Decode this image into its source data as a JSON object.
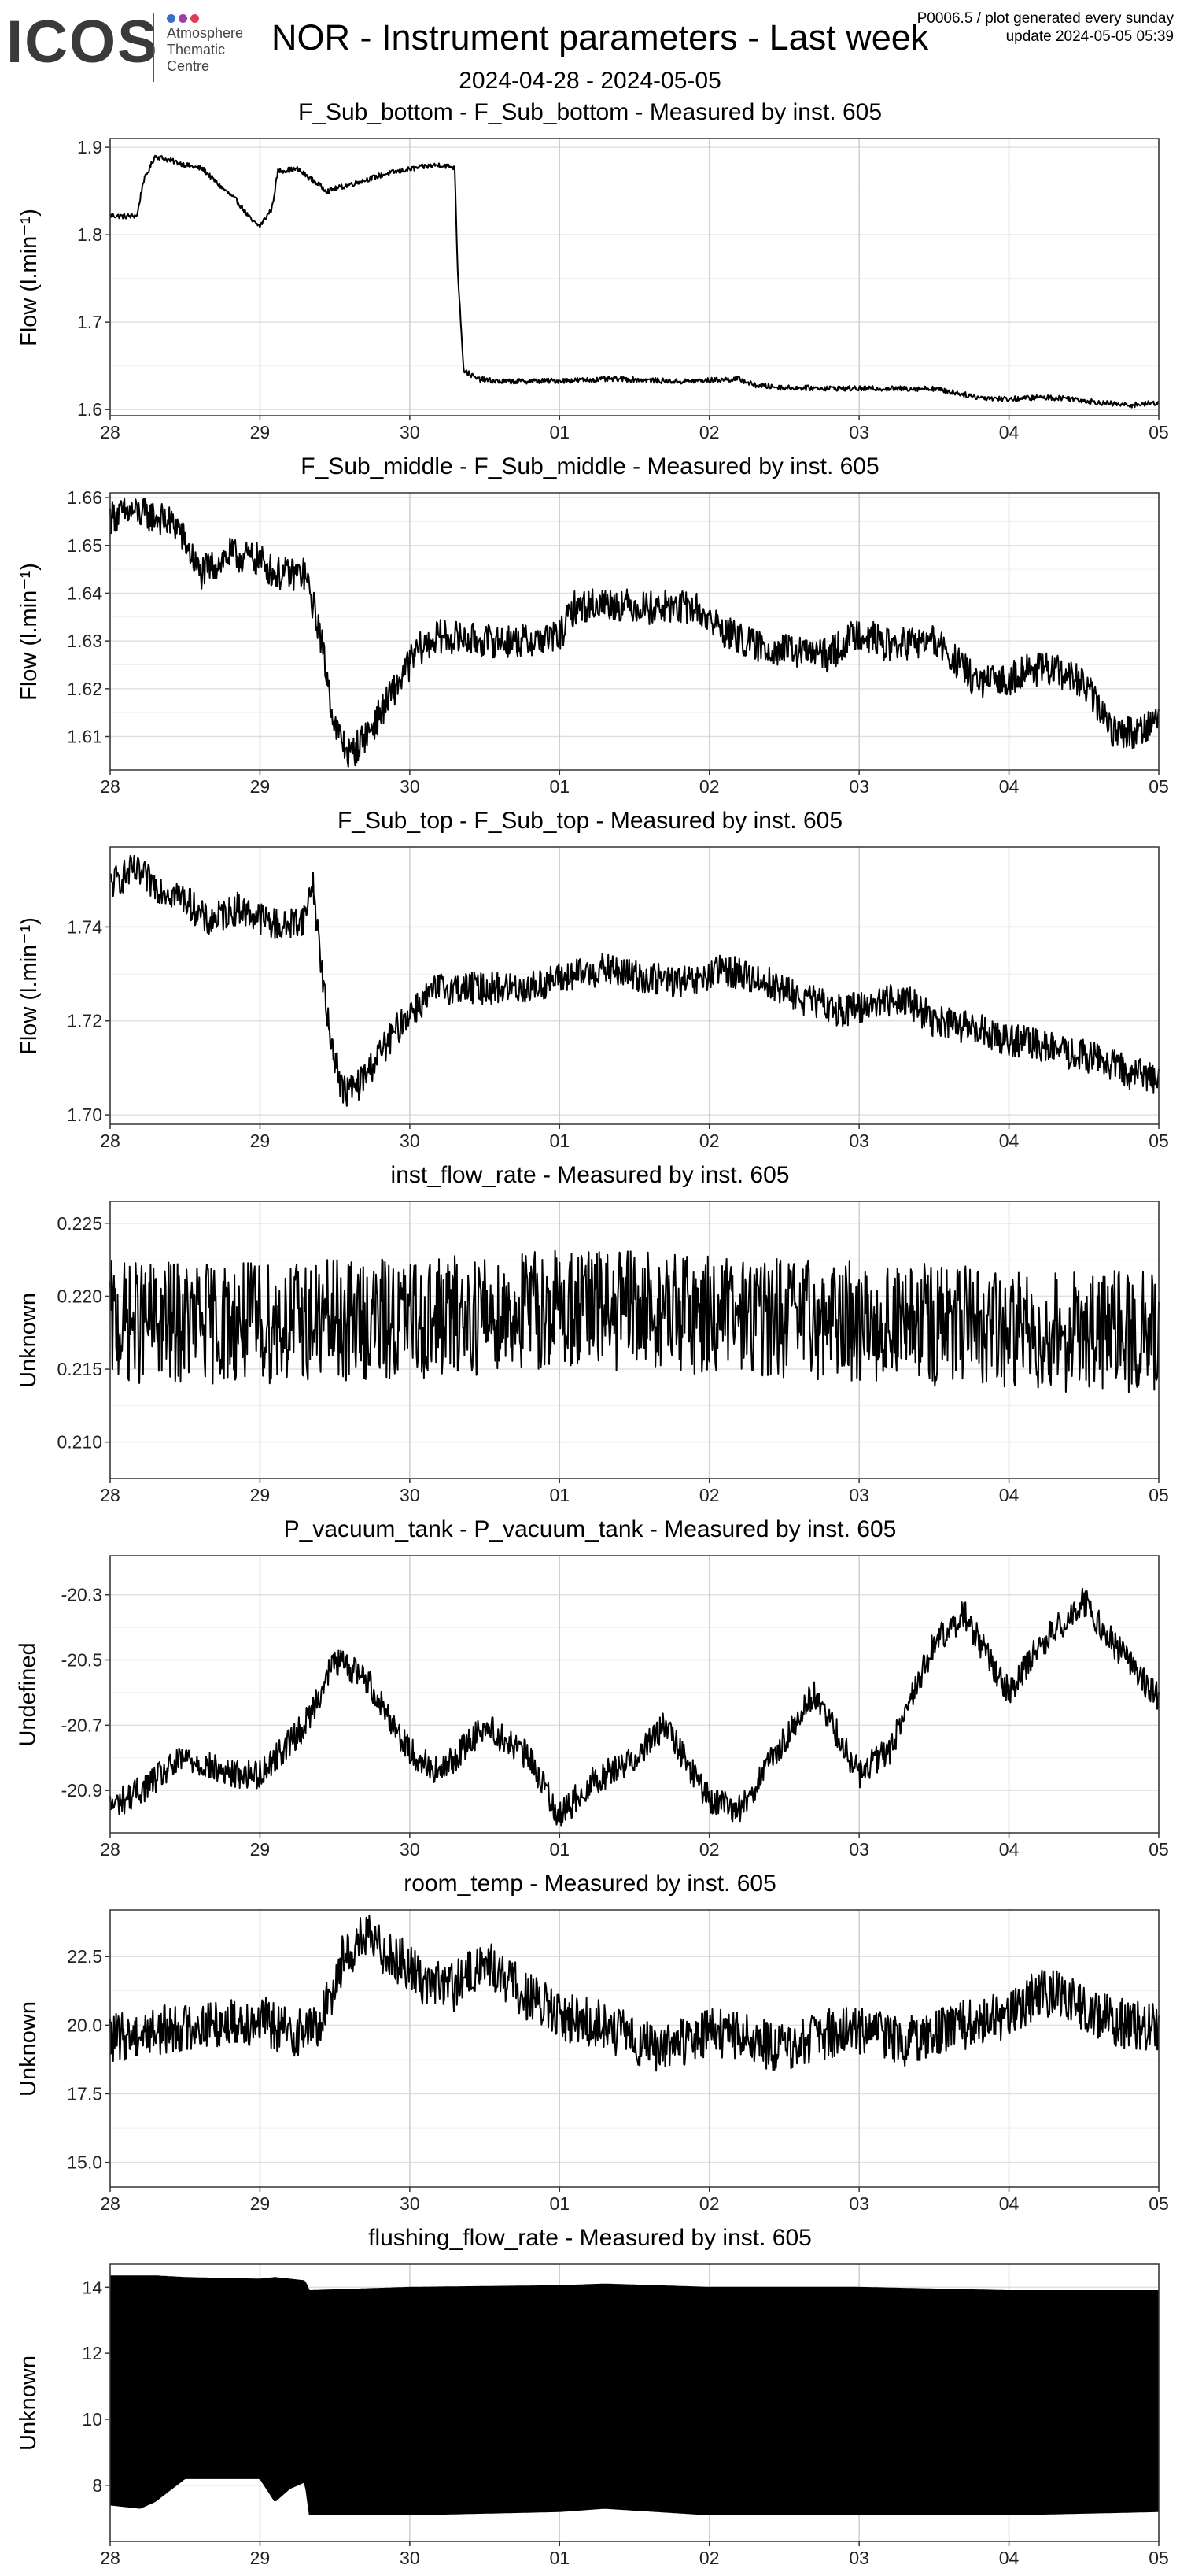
{
  "header": {
    "logo_text": "ICOS",
    "logo_subtitle": [
      "Atmosphere",
      "Thematic",
      "Centre"
    ],
    "logo_dot_colors": [
      "#3d6fc0",
      "#a23aa8",
      "#e33b56"
    ],
    "title": "NOR - Instrument parameters - Last week",
    "meta_line1": "P0006.5 / plot generated every sunday",
    "meta_line2": "update  2024-05-05 05:39",
    "date_range": "2024-04-28 - 2024-05-05"
  },
  "chart_data": [
    {
      "type": "line",
      "title": "F_Sub_bottom - F_Sub_bottom - Measured by inst. 605",
      "xlabel": "",
      "ylabel": "Flow (l.min⁻¹)",
      "x_ticks": [
        "28",
        "29",
        "30",
        "01",
        "02",
        "03",
        "04",
        "05"
      ],
      "x_range": [
        0,
        7
      ],
      "y_ticks": [
        "1.6",
        "1.7",
        "1.8",
        "1.9"
      ],
      "ylim": [
        1.593,
        1.91
      ],
      "grid": true,
      "series": [
        {
          "x": [
            0,
            0.1,
            0.18,
            0.22,
            0.3,
            0.5,
            0.62,
            0.72,
            0.85,
            0.95,
            1.0,
            1.08,
            1.12,
            1.25,
            1.45,
            1.65,
            1.85,
            2.0,
            2.1,
            2.2,
            2.3,
            2.32,
            2.36,
            2.45,
            2.6,
            3.0,
            3.4,
            3.8,
            4.2,
            4.3,
            4.5,
            5.0,
            5.5,
            5.8,
            6.0,
            6.2,
            6.4,
            6.6,
            6.8,
            7.0
          ],
          "y": [
            1.822,
            1.821,
            1.822,
            1.86,
            1.89,
            1.88,
            1.875,
            1.858,
            1.838,
            1.815,
            1.81,
            1.83,
            1.873,
            1.875,
            1.85,
            1.86,
            1.87,
            1.875,
            1.878,
            1.88,
            1.877,
            1.76,
            1.645,
            1.635,
            1.632,
            1.633,
            1.635,
            1.632,
            1.635,
            1.628,
            1.625,
            1.624,
            1.624,
            1.614,
            1.612,
            1.614,
            1.613,
            1.608,
            1.605,
            1.608
          ],
          "noise": 0.003
        }
      ]
    },
    {
      "type": "line",
      "title": "F_Sub_middle - F_Sub_middle - Measured by inst. 605",
      "xlabel": "",
      "ylabel": "Flow (l.min⁻¹)",
      "x_ticks": [
        "28",
        "29",
        "30",
        "01",
        "02",
        "03",
        "04",
        "05"
      ],
      "x_range": [
        0,
        7
      ],
      "y_ticks": [
        "1.61",
        "1.62",
        "1.63",
        "1.64",
        "1.65",
        "1.66"
      ],
      "ylim": [
        1.603,
        1.661
      ],
      "grid": true,
      "series": [
        {
          "x": [
            0,
            0.15,
            0.3,
            0.45,
            0.6,
            0.8,
            1.0,
            1.1,
            1.3,
            1.4,
            1.5,
            1.6,
            1.75,
            1.9,
            2.05,
            2.2,
            2.5,
            2.8,
            3.0,
            3.1,
            3.3,
            3.6,
            3.9,
            4.1,
            4.3,
            4.5,
            4.8,
            5.0,
            5.2,
            5.5,
            5.8,
            6.0,
            6.1,
            6.3,
            6.5,
            6.7,
            6.85,
            7.0
          ],
          "y": [
            1.656,
            1.657,
            1.656,
            1.654,
            1.644,
            1.648,
            1.647,
            1.644,
            1.644,
            1.632,
            1.612,
            1.606,
            1.612,
            1.62,
            1.628,
            1.631,
            1.63,
            1.63,
            1.631,
            1.637,
            1.638,
            1.637,
            1.637,
            1.632,
            1.629,
            1.628,
            1.627,
            1.632,
            1.629,
            1.63,
            1.621,
            1.622,
            1.624,
            1.624,
            1.621,
            1.611,
            1.611,
            1.614
          ],
          "noise": 0.0035
        }
      ]
    },
    {
      "type": "line",
      "title": "F_Sub_top - F_Sub_top - Measured by inst. 605",
      "xlabel": "",
      "ylabel": "Flow (l.min⁻¹)",
      "x_ticks": [
        "28",
        "29",
        "30",
        "01",
        "02",
        "03",
        "04",
        "05"
      ],
      "x_range": [
        0,
        7
      ],
      "y_ticks": [
        "1.70",
        "1.72",
        "1.74"
      ],
      "ylim": [
        1.698,
        1.757
      ],
      "grid": true,
      "series": [
        {
          "x": [
            0,
            0.15,
            0.3,
            0.5,
            0.65,
            0.85,
            1.0,
            1.15,
            1.3,
            1.35,
            1.45,
            1.55,
            1.65,
            1.8,
            2.0,
            2.2,
            2.5,
            2.8,
            3.0,
            3.3,
            3.6,
            3.9,
            4.1,
            4.4,
            4.6,
            4.9,
            5.1,
            5.3,
            5.5,
            5.8,
            6.0,
            6.2,
            6.4,
            6.6,
            6.8,
            7.0
          ],
          "y": [
            1.749,
            1.752,
            1.749,
            1.746,
            1.741,
            1.744,
            1.742,
            1.74,
            1.742,
            1.75,
            1.72,
            1.705,
            1.706,
            1.713,
            1.722,
            1.727,
            1.727,
            1.727,
            1.729,
            1.731,
            1.729,
            1.728,
            1.731,
            1.728,
            1.725,
            1.722,
            1.724,
            1.725,
            1.72,
            1.718,
            1.716,
            1.715,
            1.713,
            1.712,
            1.709,
            1.708
          ],
          "noise": 0.0035
        }
      ]
    },
    {
      "type": "line",
      "title": "inst_flow_rate - Measured by inst. 605",
      "xlabel": "",
      "ylabel": "Unknown",
      "x_ticks": [
        "28",
        "29",
        "30",
        "01",
        "02",
        "03",
        "04",
        "05"
      ],
      "x_range": [
        0,
        7
      ],
      "y_ticks": [
        "0.210",
        "0.215",
        "0.220",
        "0.225"
      ],
      "ylim": [
        0.2075,
        0.2265
      ],
      "grid": true,
      "series": [
        {
          "x": [
            0,
            1,
            2,
            3,
            4,
            5,
            6,
            7
          ],
          "y": [
            0.2182,
            0.2182,
            0.2184,
            0.2192,
            0.2188,
            0.2183,
            0.2177,
            0.2175
          ],
          "noise": 0.0042
        }
      ]
    },
    {
      "type": "line",
      "title": "P_vacuum_tank - P_vacuum_tank - Measured by inst. 605",
      "xlabel": "",
      "ylabel": "Undefined",
      "x_ticks": [
        "28",
        "29",
        "30",
        "01",
        "02",
        "03",
        "04",
        "05"
      ],
      "x_range": [
        0,
        7
      ],
      "y_ticks": [
        "-20.9",
        "-20.7",
        "-20.5",
        "-20.3"
      ],
      "ylim": [
        -21.03,
        -20.18
      ],
      "grid": true,
      "series": [
        {
          "x": [
            0,
            0.2,
            0.5,
            0.8,
            1.0,
            1.3,
            1.5,
            1.7,
            2.0,
            2.2,
            2.5,
            2.8,
            3.0,
            3.2,
            3.5,
            3.7,
            4.0,
            4.2,
            4.5,
            4.7,
            5.0,
            5.2,
            5.5,
            5.7,
            6.0,
            6.2,
            6.5,
            6.7,
            7.0
          ],
          "y": [
            -20.95,
            -20.9,
            -20.8,
            -20.85,
            -20.85,
            -20.7,
            -20.5,
            -20.55,
            -20.78,
            -20.85,
            -20.7,
            -20.8,
            -20.98,
            -20.88,
            -20.8,
            -20.7,
            -20.93,
            -20.96,
            -20.75,
            -20.6,
            -20.85,
            -20.78,
            -20.45,
            -20.36,
            -20.6,
            -20.46,
            -20.32,
            -20.45,
            -20.62
          ],
          "noise": 0.045
        }
      ]
    },
    {
      "type": "line",
      "title": "room_temp - Measured by inst. 605",
      "xlabel": "",
      "ylabel": "Unknown",
      "x_ticks": [
        "28",
        "29",
        "30",
        "01",
        "02",
        "03",
        "04",
        "05"
      ],
      "x_range": [
        0,
        7
      ],
      "y_ticks": [
        "15.0",
        "17.5",
        "20.0",
        "22.5"
      ],
      "ylim": [
        14.1,
        24.2
      ],
      "grid": true,
      "series": [
        {
          "x": [
            0,
            0.3,
            0.6,
            1.0,
            1.2,
            1.4,
            1.55,
            1.7,
            1.9,
            2.1,
            2.3,
            2.5,
            2.8,
            3.0,
            3.3,
            3.6,
            3.8,
            4.0,
            4.2,
            4.5,
            4.8,
            5.0,
            5.3,
            5.6,
            5.8,
            6.0,
            6.2,
            6.4,
            6.6,
            6.8,
            7.0
          ],
          "y": [
            19.5,
            19.8,
            20.0,
            20.2,
            19.7,
            20.0,
            22.4,
            23.2,
            22.5,
            21.6,
            21.4,
            22.3,
            21.0,
            20.3,
            20.0,
            19.2,
            19.3,
            19.8,
            19.6,
            19.1,
            19.7,
            19.8,
            19.4,
            19.8,
            20.2,
            20.4,
            21.2,
            21.0,
            20.3,
            20.0,
            19.9
          ],
          "noise": 0.9
        }
      ]
    },
    {
      "type": "area",
      "title": "flushing_flow_rate - Measured by inst. 605",
      "xlabel": "",
      "ylabel": "Unknown",
      "x_ticks": [
        "28",
        "29",
        "30",
        "01",
        "02",
        "03",
        "04",
        "05"
      ],
      "x_range": [
        0,
        7
      ],
      "y_ticks": [
        "8",
        "10",
        "12",
        "14"
      ],
      "ylim": [
        6.3,
        14.7
      ],
      "grid": true,
      "band": {
        "x": [
          0,
          0.2,
          0.3,
          0.5,
          1.0,
          1.1,
          1.2,
          1.3,
          1.33,
          2.0,
          3.0,
          3.3,
          4.0,
          5.0,
          6.0,
          7.0
        ],
        "upper": [
          14.35,
          14.35,
          14.35,
          14.3,
          14.25,
          14.3,
          14.25,
          14.2,
          13.9,
          14.0,
          14.05,
          14.1,
          14.0,
          14.0,
          13.9,
          13.9
        ],
        "lower": [
          7.4,
          7.3,
          7.5,
          8.2,
          8.2,
          7.5,
          7.9,
          8.1,
          7.1,
          7.1,
          7.2,
          7.3,
          7.1,
          7.1,
          7.1,
          7.2
        ]
      }
    }
  ]
}
